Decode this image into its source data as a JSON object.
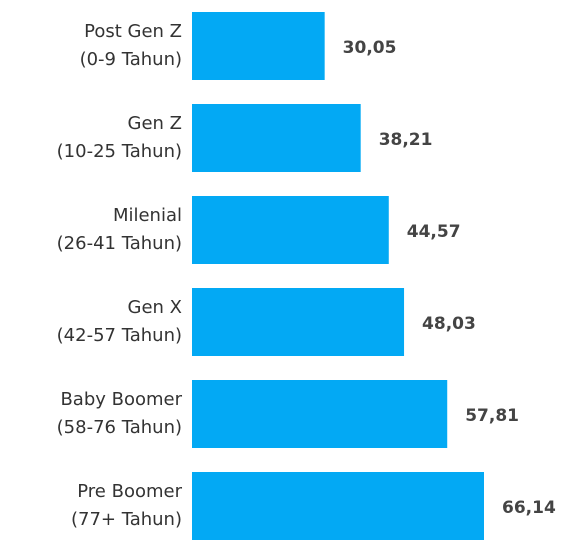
{
  "chart_data": {
    "type": "bar",
    "orientation": "horizontal",
    "categories": [
      [
        "Post Gen Z",
        "(0-9 Tahun)"
      ],
      [
        "Gen Z",
        "(10-25 Tahun)"
      ],
      [
        "Milenial",
        "(26-41 Tahun)"
      ],
      [
        "Gen X",
        "(42-57 Tahun)"
      ],
      [
        "Baby Boomer",
        "(58-76 Tahun)"
      ],
      [
        "Pre Boomer",
        "(77+ Tahun)"
      ]
    ],
    "values": [
      30.05,
      38.21,
      44.57,
      48.03,
      57.81,
      66.14
    ],
    "value_labels": [
      "30,05",
      "38,21",
      "44,57",
      "48,03",
      "57,81",
      "66,14"
    ],
    "color": "#03a9f4"
  }
}
